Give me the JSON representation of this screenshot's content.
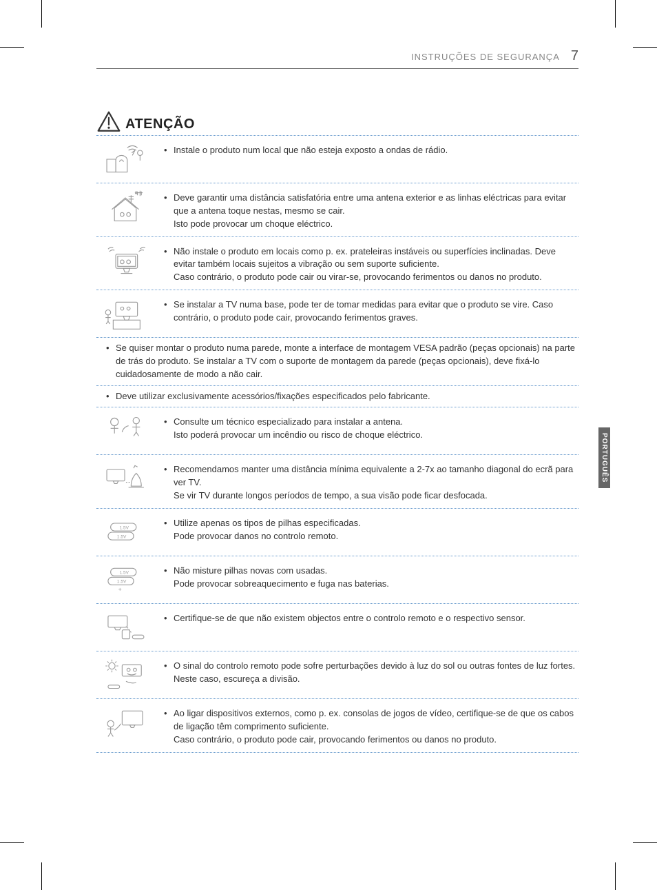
{
  "header": {
    "title": "INSTRUÇÕES DE SEGURANÇA",
    "page_number": "7"
  },
  "side_tab": "PORTUGUÊS",
  "section": {
    "title": "ATENÇÃO"
  },
  "items": [
    {
      "icon": "radio-waves-icon",
      "text": "Instale o produto num local que não esteja exposto a ondas de rádio."
    },
    {
      "icon": "antenna-house-icon",
      "text": "Deve garantir uma distância satisfatória entre uma antena exterior e as linhas eléctricas para evitar que a antena toque nestas, mesmo se cair.\nIsto pode provocar um choque eléctrico."
    },
    {
      "icon": "unstable-tv-icon",
      "text": "Não instale o produto em locais como p. ex. prateleiras instáveis ou superfícies inclinadas. Deve evitar também locais sujeitos a vibração ou sem suporte suficiente.\nCaso contrário, o produto pode cair ou virar-se, provocando ferimentos ou danos no produto."
    },
    {
      "icon": "tv-stand-icon",
      "text": "Se instalar a TV numa base, pode ter de tomar medidas para evitar que o produto se vire. Caso contrário, o produto pode cair, provocando ferimentos graves."
    }
  ],
  "full_items": [
    "Se quiser montar o produto numa parede, monte a interface de montagem VESA padrão (peças opcionais) na parte de trás do produto. Se instalar a TV com o suporte de montagem da parede (peças opcionais), deve fixá-lo cuidadosamente de modo a não cair.",
    "Deve utilizar exclusivamente acessórios/fixações especificados pelo fabricante."
  ],
  "items2": [
    {
      "icon": "technician-icon",
      "text": "Consulte um técnico especializado para instalar a antena.\nIsto poderá provocar um incêndio ou risco de choque eléctrico."
    },
    {
      "icon": "viewing-distance-icon",
      "text": "Recomendamos manter uma distância mínima equivalente a 2-7x ao tamanho diagonal do ecrã para ver TV.\nSe vir TV durante longos períodos de tempo, a sua visão pode ficar desfocada."
    },
    {
      "icon": "batteries-icon",
      "text": "Utilize apenas os tipos de pilhas especificadas.\nPode provocar danos no controlo remoto."
    },
    {
      "icon": "batteries-mixed-icon",
      "text": "Não misture pilhas novas com usadas.\nPode provocar sobreaquecimento e fuga nas baterias."
    },
    {
      "icon": "remote-sensor-icon",
      "text": "Certifique-se de que não existem objectos entre o controlo remoto e o respectivo sensor."
    },
    {
      "icon": "sunlight-remote-icon",
      "text": "O sinal do controlo remoto pode sofre perturbações devido à luz do sol ou outras fontes de luz fortes. Neste caso, escureça a divisão."
    },
    {
      "icon": "external-device-icon",
      "text": "Ao ligar dispositivos externos, como p. ex. consolas de jogos de vídeo, certifique-se de que os cabos de ligação têm comprimento suficiente.\nCaso contrário, o produto pode cair, provocando ferimentos ou danos no produto."
    }
  ],
  "colors": {
    "dotted_border": "#6699cc",
    "header_text": "#888888",
    "body_text": "#333333",
    "tab_bg": "#666666",
    "icon_stroke": "#888888"
  }
}
